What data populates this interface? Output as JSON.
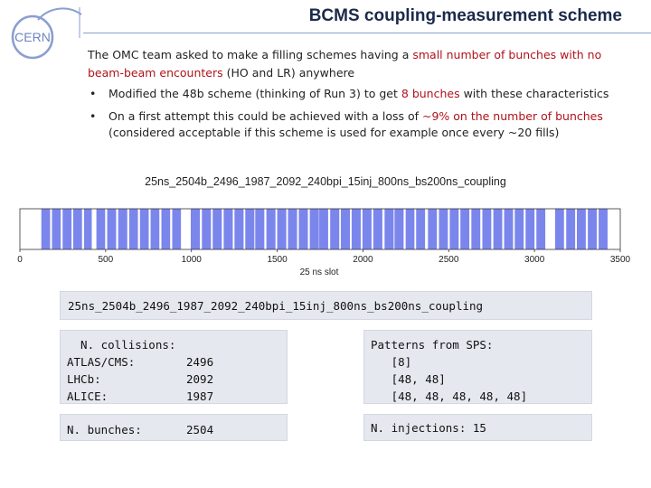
{
  "slide": {
    "title": "BCMS coupling-measurement scheme",
    "logo_text": "CERN",
    "intro_parts": [
      {
        "text": "The OMC team asked to make a filling schemes having a ",
        "emphasis": false
      },
      {
        "text": "small number of bunches with no beam-beam encounters",
        "emphasis": true
      },
      {
        "text": " (HO and LR) anywhere",
        "emphasis": false
      }
    ],
    "bullets": [
      [
        {
          "text": "Modified the 48b scheme (thinking of Run 3) to get ",
          "emphasis": false
        },
        {
          "text": "8 bunches",
          "emphasis": true
        },
        {
          "text": " with these characteristics",
          "emphasis": false
        }
      ],
      [
        {
          "text": "On a first attempt this could be achieved with a loss of ",
          "emphasis": false
        },
        {
          "text": "~9% on the number of bunches",
          "emphasis": true
        },
        {
          "text": " (considered acceptable if this scheme is used for example once every ~20 fills)",
          "emphasis": false
        }
      ]
    ],
    "bullet_glyph": "•",
    "colors": {
      "emphasis": "#b0121b",
      "bars": "#7b86ec",
      "box_bg": "#e5e8ee",
      "title": "#1b2a4a"
    }
  },
  "chart_data": {
    "type": "bar",
    "title": "25ns_2504b_2496_1987_2092_240bpi_15inj_800ns_bs200ns_coupling",
    "xlabel": "25 ns slot",
    "ylabel": "",
    "xlim": [
      0,
      3500
    ],
    "x_ticks": [
      0,
      500,
      1000,
      1500,
      2000,
      2500,
      3000,
      3500
    ],
    "grid": false,
    "bar_color": "#7b86ec",
    "trains": [
      [
        125,
        176
      ],
      [
        187,
        238
      ],
      [
        249,
        301
      ],
      [
        311,
        362
      ],
      [
        374,
        419
      ],
      [
        446,
        497
      ],
      [
        509,
        561
      ],
      [
        573,
        626
      ],
      [
        637,
        688
      ],
      [
        700,
        751
      ],
      [
        762,
        813
      ],
      [
        825,
        876
      ],
      [
        888,
        939
      ],
      [
        996,
        1049
      ],
      [
        1061,
        1114
      ],
      [
        1124,
        1177
      ],
      [
        1188,
        1241
      ],
      [
        1251,
        1304
      ],
      [
        1314,
        1367
      ],
      [
        1372,
        1425
      ],
      [
        1437,
        1490
      ],
      [
        1500,
        1553
      ],
      [
        1563,
        1616
      ],
      [
        1626,
        1679
      ],
      [
        1690,
        1743
      ],
      [
        1745,
        1797
      ],
      [
        1809,
        1862
      ],
      [
        1871,
        1924
      ],
      [
        1934,
        1987
      ],
      [
        1997,
        2050
      ],
      [
        2060,
        2113
      ],
      [
        2126,
        2179
      ],
      [
        2184,
        2237
      ],
      [
        2249,
        2300
      ],
      [
        2310,
        2362
      ],
      [
        2379,
        2431
      ],
      [
        2443,
        2495
      ],
      [
        2506,
        2558
      ],
      [
        2568,
        2620
      ],
      [
        2632,
        2684
      ],
      [
        2696,
        2748
      ],
      [
        2760,
        2812
      ],
      [
        2823,
        2875
      ],
      [
        2885,
        2937
      ],
      [
        2948,
        3000
      ],
      [
        3011,
        3063
      ],
      [
        3120,
        3172
      ],
      [
        3185,
        3237
      ],
      [
        3247,
        3299
      ],
      [
        3311,
        3363
      ],
      [
        3374,
        3426
      ]
    ]
  },
  "info": {
    "scheme_name": "25ns_2504b_2496_1987_2092_240bpi_15inj_800ns_bs200ns_coupling",
    "collisions": {
      "header": "  N. collisions:",
      "rows": [
        {
          "label": "ATLAS/CMS:",
          "value": "2496"
        },
        {
          "label": "LHCb:",
          "value": "2092"
        },
        {
          "label": "ALICE:",
          "value": "1987"
        }
      ]
    },
    "patterns": {
      "header": "Patterns from SPS:",
      "lines": [
        "   [8]",
        "   [48, 48]",
        "   [48, 48, 48, 48, 48]"
      ]
    },
    "bunches": {
      "label": "N. bunches:",
      "value": "2504"
    },
    "injections": {
      "text": "N. injections: 15"
    }
  }
}
